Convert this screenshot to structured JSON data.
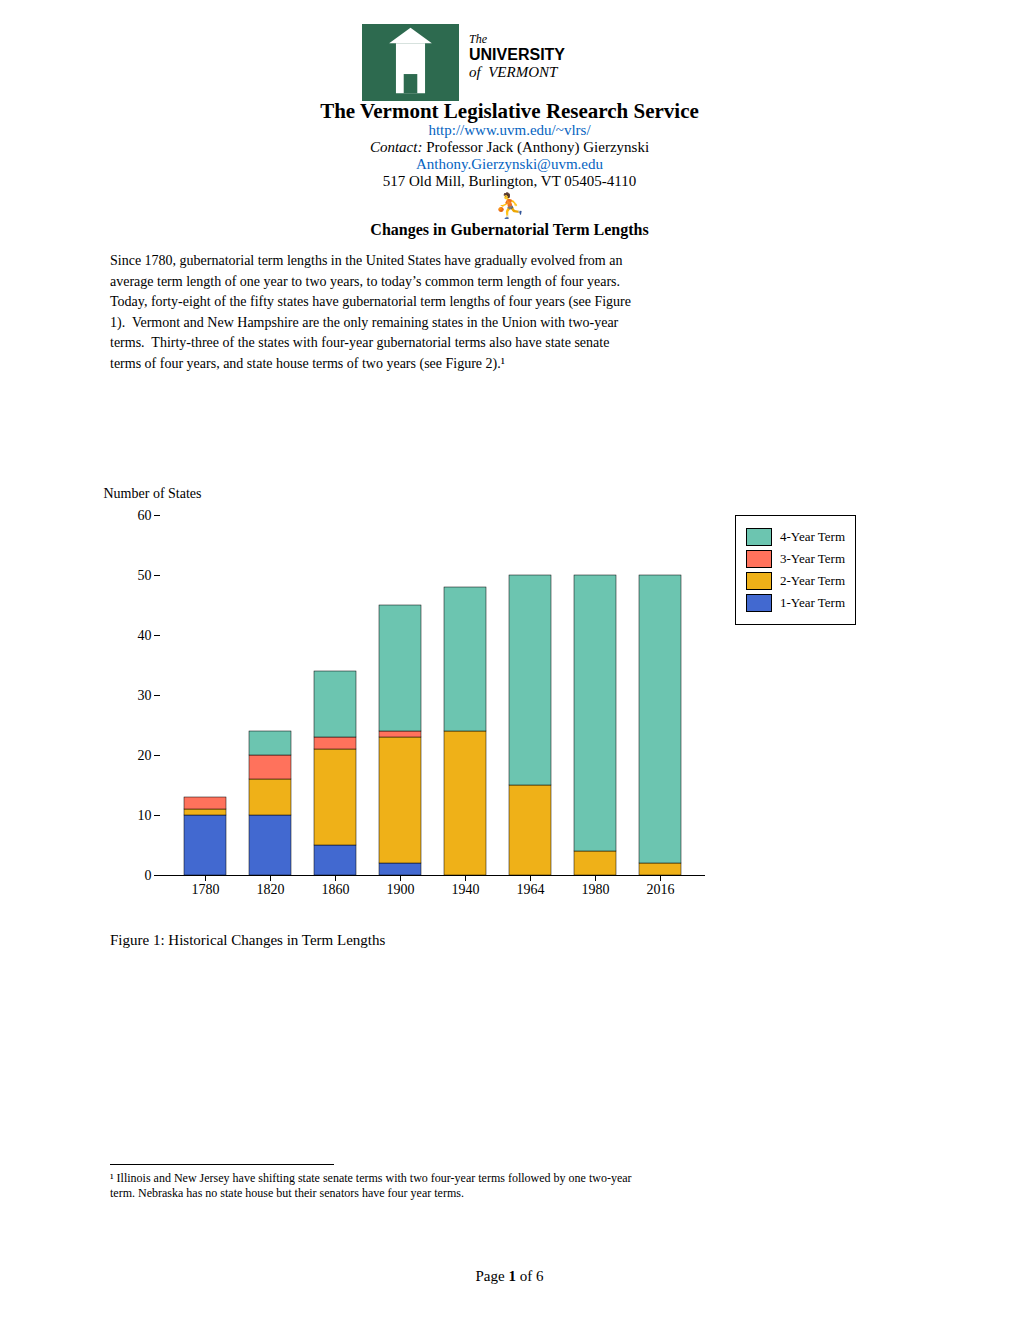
{
  "chart_data": {
    "type": "bar",
    "title": "Changes in Gubernatorial Term Lengths",
    "ylabel": "Number of States",
    "categories": [
      "1780",
      "1820",
      "1860",
      "1900",
      "1940",
      "1964",
      "1980",
      "2016"
    ],
    "series": [
      {
        "name": "1-Year Term",
        "values": [
          10,
          10,
          5,
          2,
          0,
          0,
          0,
          0
        ]
      },
      {
        "name": "2-Year Term",
        "values": [
          1,
          6,
          16,
          21,
          24,
          15,
          4,
          2
        ]
      },
      {
        "name": "3-Year Term",
        "values": [
          2,
          4,
          2,
          1,
          0,
          0,
          0,
          0
        ]
      },
      {
        "name": "4-Year Term",
        "values": [
          0,
          4,
          11,
          21,
          24,
          35,
          46,
          48
        ]
      }
    ],
    "stacked": true,
    "ylim": [
      0,
      60
    ],
    "yticks": [
      0,
      10,
      20,
      30,
      40,
      50,
      60
    ],
    "grid": false,
    "legend": "right",
    "annotations": [
      "The",
      "UNIVERSITY",
      "of  VERMONT",
      "The Vermont Legislative Research Service",
      "http://www.uvm.edu/~vlrs/",
      "Contact: ",
      "Professor Jack (Anthony) Gierzynski",
      "Anthony.Gierzynski@uvm.edu",
      "517 Old Mill, Burlington, VT 05405-4110",
      "⛹",
      "Since 1780, gubernatorial term lengths in the United States have gradually evolved from an",
      "average term length of one year to two years, to today’s common term length of four years.",
      "Today, forty-eight of the fifty states have gubernatorial term lengths of four years (see Figure",
      "1).  Vermont and New Hampshire are the only remaining states in the Union with two-year",
      "terms.  Thirty-three of the states with four-year gubernatorial terms also have state senate",
      "terms of four years, and state house terms of two years (see Figure 2).¹",
      "Figure 1: Historical Changes in Term Lengths",
      "¹ Illinois and New Jersey have shifting state senate terms with two four-year terms followed by one two-year",
      "term. Nebraska has no state house but their senators have four year terms.",
      "Page ",
      "1",
      " of 6"
    ]
  }
}
